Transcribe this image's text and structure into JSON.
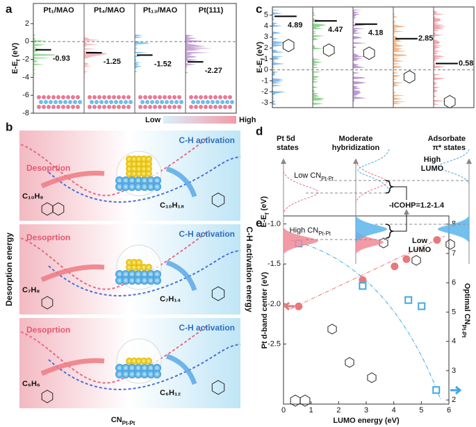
{
  "panel_labels": [
    "a",
    "b",
    "c",
    "d",
    "e"
  ],
  "chart_data": [
    {
      "type": "level",
      "ylabel": {
        "base": "E-E",
        "sub": "f",
        "rest": " (eV)"
      },
      "categories": [
        "Pt₁/MAO",
        "Pt₄/MAO",
        "Pt₁₃/MAO",
        "Pt(111)"
      ],
      "values": [
        -0.93,
        -1.25,
        -1.52,
        -2.27
      ],
      "colors": [
        "#7ccf7c",
        "#f2a0a8",
        "#58b4ea",
        "#b58ac9"
      ],
      "ylim": [
        -8,
        4.25
      ],
      "yticks": [
        2,
        0,
        -2,
        -4,
        -6,
        -8
      ]
    },
    {
      "type": "level",
      "ylabel": {
        "base": "E-E",
        "sub": "f",
        "rest": " (eV)"
      },
      "values": [
        4.89,
        4.47,
        4.18,
        2.85,
        0.58
      ],
      "colors": [
        "#58a6e8",
        "#6cc36c",
        "#a877c4",
        "#f0a064",
        "#f08a96"
      ],
      "ylim": [
        -3.45,
        5.75
      ],
      "yticks": [
        5,
        4,
        3,
        2,
        1,
        0,
        -1,
        -2,
        -3
      ]
    },
    {
      "type": "scatter",
      "xlabel": "LUMO energy (eV)",
      "ylabel": "Pt d-band center (eV)",
      "y2label": {
        "base": "Optimal CN",
        "sub": "Pt-Pt"
      },
      "xlim": [
        0,
        6
      ],
      "xticks": [
        0,
        1,
        2,
        3,
        4,
        5,
        6
      ],
      "ylim": [
        -3.25,
        -0.9
      ],
      "yticks": [
        {
          "value": -1,
          "label": "-1.0"
        },
        -1.5,
        {
          "value": -2,
          "label": "-2.0"
        },
        -2.5
      ],
      "y2lim": [
        1.86,
        8.28
      ],
      "y2ticks": [
        2,
        3,
        4,
        5,
        6,
        7,
        8
      ],
      "series": [
        {
          "color": "#e8787a",
          "x": [
            0.55,
            2.87,
            4.03,
            4.46,
            5.57
          ],
          "values": [
            -2.03,
            -1.7,
            -1.53,
            -1.44,
            -1.2
          ]
        },
        {
          "color": "#3ea8e6",
          "axis": "y2",
          "x": [
            0.55,
            2.87,
            4.53,
            5.01,
            5.54
          ],
          "values": [
            7.34,
            5.89,
            5.41,
            5.2,
            2.34
          ]
        }
      ]
    }
  ],
  "panel_b": {
    "scale": [
      "Low",
      "High"
    ],
    "rows": [
      {
        "left": "Desoprtion",
        "right": "C-H activation",
        "product": "C₁₀H₈",
        "reactant": "C₁₀H₁₈"
      },
      {
        "left": "Desoprtion",
        "right": "C-H activation",
        "product": "C₇H₈",
        "reactant": "C₇H₁₄"
      },
      {
        "left": "Desoprtion",
        "right": "C-H activation",
        "product": "C₆H₆",
        "reactant": "C₆H₁₂"
      }
    ],
    "ylabel_left": "Desorption  energy",
    "ylabel_right": "C-H activation  energy",
    "xlabel": {
      "base": "CN",
      "sub": "Pt-Pt"
    }
  },
  "panel_d": {
    "titles": [
      [
        "Pt 5d",
        "states"
      ],
      [
        "Moderate",
        "hybridization"
      ],
      [
        "Adsorbate",
        "π* states"
      ]
    ],
    "low_cn": {
      "base": "Low CN",
      "sub": "Pt-Pt"
    },
    "high_lumo": [
      "High",
      "LUMO"
    ],
    "ylabel": {
      "base": "E-E",
      "sub": "f",
      "rest": " (eV)"
    },
    "icohp": "-ICOHP=1.2-1.4",
    "high_cn": {
      "base": "High CN",
      "sub": "Pt-Pt"
    },
    "low_lumo": [
      "Low",
      "LUMO"
    ]
  }
}
